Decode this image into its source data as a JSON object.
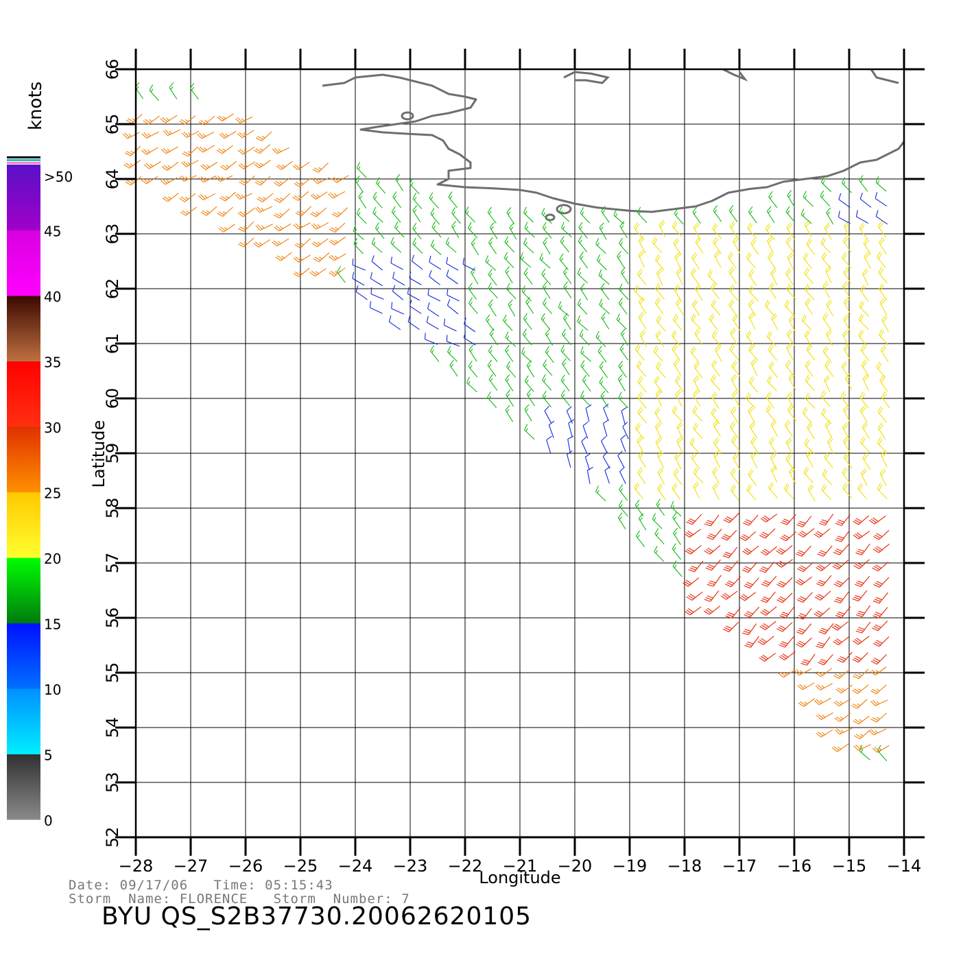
{
  "colorbar": {
    "unit_label": "knots",
    "bands": [
      {
        "from": 0,
        "to": 5,
        "top": "#303030",
        "bottom": "#8a8a8a"
      },
      {
        "from": 5,
        "to": 10,
        "top": "#0090ff",
        "bottom": "#00eeff"
      },
      {
        "from": 10,
        "to": 15,
        "top": "#0010ff",
        "bottom": "#0070ff"
      },
      {
        "from": 15,
        "to": 20,
        "top": "#00ff00",
        "bottom": "#007a10"
      },
      {
        "from": 20,
        "to": 25,
        "top": "#ffc800",
        "bottom": "#ffff30"
      },
      {
        "from": 25,
        "to": 30,
        "top": "#e03000",
        "bottom": "#ff9000"
      },
      {
        "from": 30,
        "to": 35,
        "top": "#ff0000",
        "bottom": "#ff3010"
      },
      {
        "from": 35,
        "to": 40,
        "top": "#3a0800",
        "bottom": "#c07040"
      },
      {
        "from": 40,
        "to": 45,
        "top": "#d800e0",
        "bottom": "#ff00ff"
      },
      {
        "from": 45,
        "to": 50,
        "top": "#5a10c8",
        "bottom": "#a000c8"
      }
    ],
    "tick_labels": [
      "0",
      "5",
      "10",
      "15",
      "20",
      "25",
      "30",
      "35",
      "40",
      "45",
      ">50"
    ],
    "cap_colors": [
      "#ff80c0",
      "#20c0c0",
      "#000000"
    ]
  },
  "map": {
    "lon_range": [
      -28,
      -14
    ],
    "lat_range": [
      52,
      66
    ],
    "lon_ticks": [
      -28,
      -27,
      -26,
      -25,
      -24,
      -23,
      -22,
      -21,
      -20,
      -19,
      -18,
      -17,
      -16,
      -15,
      -14
    ],
    "lat_ticks": [
      52,
      53,
      54,
      55,
      56,
      57,
      58,
      59,
      60,
      61,
      62,
      63,
      64,
      65,
      66
    ],
    "lon_tick_labels": [
      "−28",
      "−27",
      "−26",
      "−25",
      "−24",
      "−23",
      "−22",
      "−21",
      "−20",
      "−19",
      "−18",
      "−17",
      "−16",
      "−15",
      "−14"
    ],
    "lat_tick_labels": [
      "52",
      "53",
      "54",
      "55",
      "56",
      "57",
      "58",
      "59",
      "60",
      "61",
      "62",
      "63",
      "64",
      "65",
      "66"
    ],
    "xlabel": "Longitude",
    "ylabel": "Latitude",
    "grid": true,
    "coastline": "Iceland (south coast)",
    "coast_color": "#6e6e6e"
  },
  "speed_colors": {
    "blue": "#0a28e0",
    "green": "#10b810",
    "yellow": "#f0e000",
    "orange": "#f07c00",
    "red": "#e82000"
  },
  "wind_regions": [
    {
      "name": "northwest-orange",
      "lon": [
        -28,
        -24
      ],
      "lat": [
        62.3,
        65.2
      ],
      "speed_kt": 27,
      "dir_deg": 235
    },
    {
      "name": "blue-pocket-west",
      "lon": [
        -24,
        -21.8
      ],
      "lat": [
        60.8,
        62.4
      ],
      "speed_kt": 12,
      "dir_deg": 300
    },
    {
      "name": "central-green",
      "lon": [
        -23.5,
        -17
      ],
      "lat": [
        58,
        63
      ],
      "speed_kt": 17,
      "dir_deg": 320
    },
    {
      "name": "blue-pocket-south",
      "lon": [
        -20.5,
        -19
      ],
      "lat": [
        58.3,
        59.6
      ],
      "speed_kt": 12,
      "dir_deg": 340
    },
    {
      "name": "east-yellow",
      "lon": [
        -19,
        -14
      ],
      "lat": [
        58,
        63
      ],
      "speed_kt": 22,
      "dir_deg": 325
    },
    {
      "name": "southeast-red",
      "lon": [
        -18,
        -14.2
      ],
      "lat": [
        55.3,
        58
      ],
      "speed_kt": 32,
      "dir_deg": 225
    },
    {
      "name": "south-orange",
      "lon": [
        -16,
        -14.2
      ],
      "lat": [
        53.5,
        55.3
      ],
      "speed_kt": 27,
      "dir_deg": 235
    },
    {
      "name": "northeast-blue",
      "lon": [
        -15,
        -14
      ],
      "lat": [
        63,
        63.6
      ],
      "speed_kt": 12,
      "dir_deg": 300
    }
  ],
  "footer": {
    "date_label": "Date:",
    "date": "09/17/06",
    "time_label": "Time:",
    "time": "05:15:43",
    "storm_name_label": "Storm  Name:",
    "storm_name": "FLORENCE",
    "storm_number_label": "Storm  Number:",
    "storm_number": "7",
    "product_id": "BYU  QS_S2B37730.20062620105"
  }
}
